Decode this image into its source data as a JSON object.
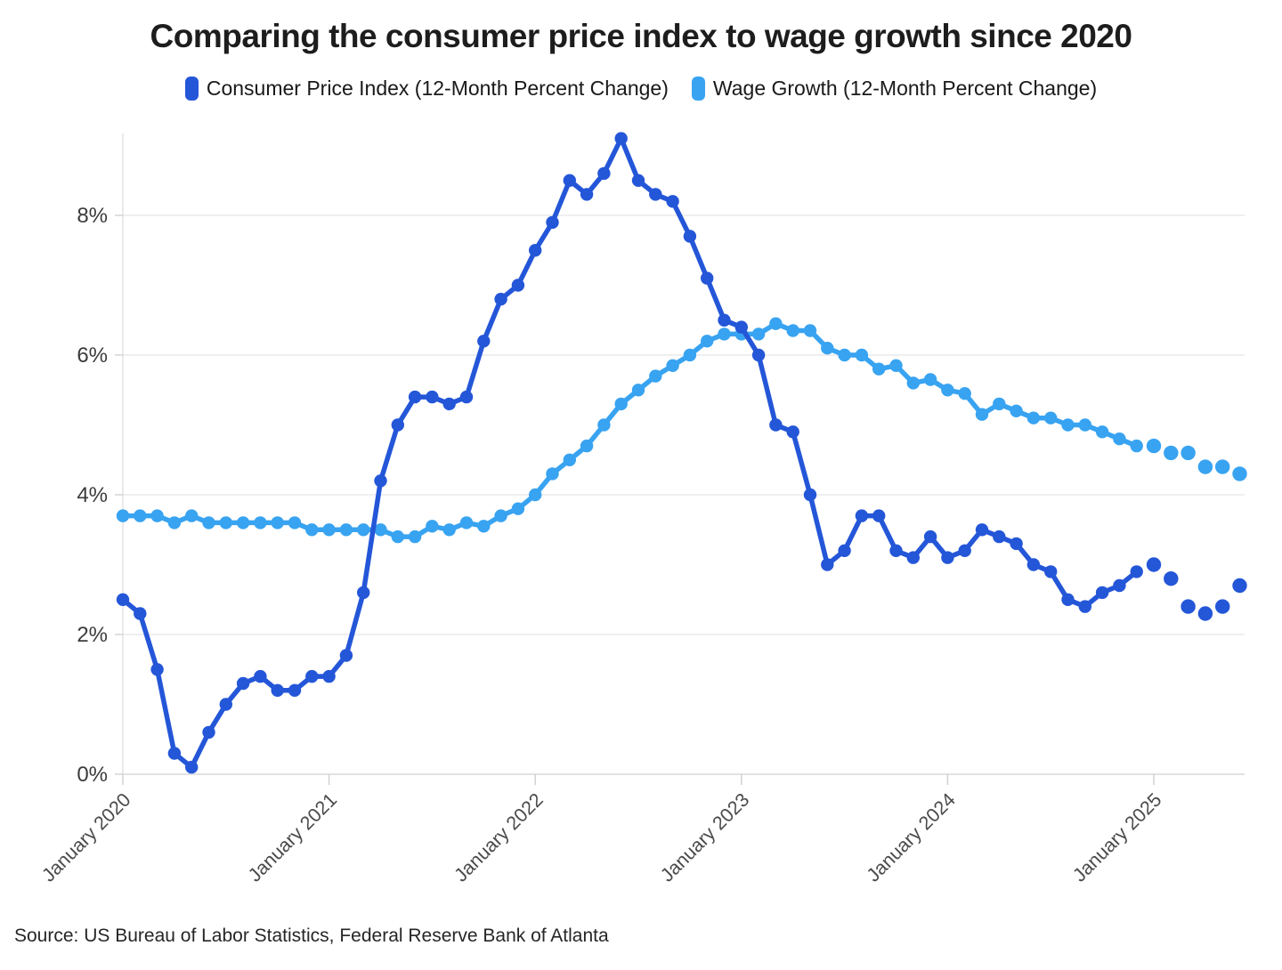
{
  "title": "Comparing the consumer price index to wage growth since 2020",
  "source": "Source: US Bureau of Labor Statistics, Federal Reserve Bank of Atlanta",
  "legend": [
    {
      "label": "Consumer Price Index (12-Month Percent Change)",
      "color": "#2456d8"
    },
    {
      "label": "Wage Growth (12-Month Percent Change)",
      "color": "#38a3f1"
    }
  ],
  "chart_data": {
    "type": "line",
    "title": "Comparing the consumer price index to wage growth since 2020",
    "xlabel": "",
    "ylabel": "",
    "frequency": "monthly",
    "start_month": "January 2020",
    "end_month": "June 2025",
    "x_tick_labels": [
      "January 2020",
      "January 2021",
      "January 2022",
      "January 2023",
      "January 2024",
      "January 2025"
    ],
    "x_tick_month_indices": [
      0,
      12,
      24,
      36,
      48,
      60
    ],
    "y_ticks": [
      "0%",
      "2%",
      "4%",
      "6%",
      "8%"
    ],
    "y_tick_values": [
      0,
      2,
      4,
      6,
      8
    ],
    "ylim": [
      0,
      9.4
    ],
    "grid": "horizontal",
    "legend_position": "top",
    "marker_style": "filled-circle",
    "recent_months_style": "unconnected dots from January 2025 onward",
    "series": [
      {
        "name": "Consumer Price Index (12-Month Percent Change)",
        "color": "#2456d8",
        "solid_through_index": 59,
        "values": [
          2.5,
          2.3,
          1.5,
          0.3,
          0.1,
          0.6,
          1.0,
          1.3,
          1.4,
          1.2,
          1.2,
          1.4,
          1.4,
          1.7,
          2.6,
          4.2,
          5.0,
          5.4,
          5.4,
          5.3,
          5.4,
          6.2,
          6.8,
          7.0,
          7.5,
          7.9,
          8.5,
          8.3,
          8.6,
          9.1,
          8.5,
          8.3,
          8.2,
          7.7,
          7.1,
          6.5,
          6.4,
          6.0,
          5.0,
          4.9,
          4.0,
          3.0,
          3.2,
          3.7,
          3.7,
          3.2,
          3.1,
          3.4,
          3.1,
          3.2,
          3.5,
          3.4,
          3.3,
          3.0,
          2.9,
          2.5,
          2.4,
          2.6,
          2.7,
          2.9,
          3.0,
          2.8,
          2.4,
          2.3,
          2.4,
          2.7
        ]
      },
      {
        "name": "Wage Growth (12-Month Percent Change)",
        "color": "#38a3f1",
        "solid_through_index": 59,
        "values": [
          3.7,
          3.7,
          3.7,
          3.6,
          3.7,
          3.6,
          3.6,
          3.6,
          3.6,
          3.6,
          3.6,
          3.5,
          3.5,
          3.5,
          3.5,
          3.5,
          3.4,
          3.4,
          3.55,
          3.5,
          3.6,
          3.55,
          3.7,
          3.8,
          4.0,
          4.3,
          4.5,
          4.7,
          5.0,
          5.3,
          5.5,
          5.7,
          5.85,
          6.0,
          6.2,
          6.3,
          6.3,
          6.3,
          6.45,
          6.35,
          6.35,
          6.1,
          6.0,
          6.0,
          5.8,
          5.85,
          5.6,
          5.65,
          5.5,
          5.45,
          5.15,
          5.3,
          5.2,
          5.1,
          5.1,
          5.0,
          5.0,
          4.9,
          4.8,
          4.7,
          4.7,
          4.6,
          4.6,
          4.4,
          4.4,
          4.3
        ]
      }
    ]
  }
}
